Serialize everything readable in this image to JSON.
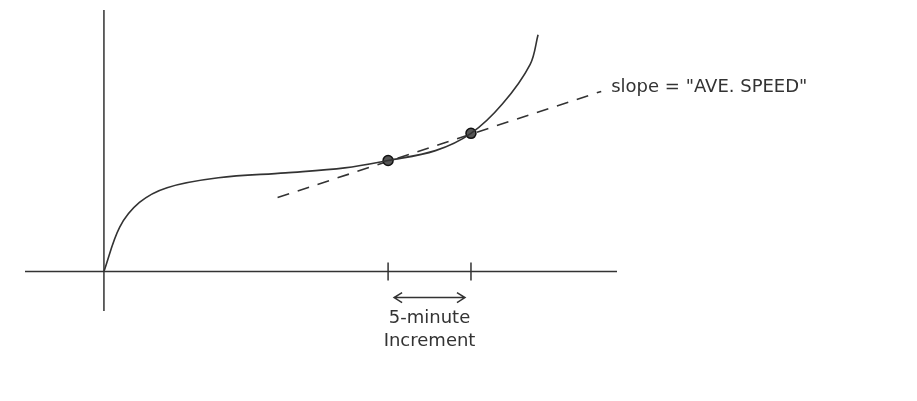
{
  "chart_data": {
    "type": "line",
    "xlim": [
      -2,
      13
    ],
    "ylim": [
      -1.6,
      10.6
    ],
    "tick_labels": false,
    "grid": false,
    "series": [
      {
        "type": "line",
        "color": "#333333",
        "line_style": "solid",
        "x": [
          0,
          0.4,
          0.9,
          1.6,
          2.9,
          4.6,
          6.1,
          7.2,
          8.4,
          9.3,
          10.1,
          10.8,
          11.0
        ],
        "values": [
          0,
          1.8,
          2.8,
          3.4,
          3.8,
          4.0,
          4.2,
          4.5,
          4.9,
          5.6,
          6.8,
          8.4,
          9.6
        ]
      },
      {
        "type": "scatter",
        "color": "#333333",
        "marker": "circle",
        "x": [
          7.2,
          9.3
        ],
        "values": [
          4.5,
          5.6
        ]
      },
      {
        "type": "line",
        "color": "#333333",
        "line_style": "dashed",
        "x": [
          4.4,
          12.6
        ],
        "values": [
          3.0,
          7.3
        ]
      }
    ],
    "annotations": [
      {
        "text": "slope = \"AVE. SPEED\"",
        "x": 12.6,
        "y": 7.3
      }
    ],
    "interval": {
      "label": "5-minute Increment",
      "start": 7.2,
      "end": 9.3
    }
  }
}
